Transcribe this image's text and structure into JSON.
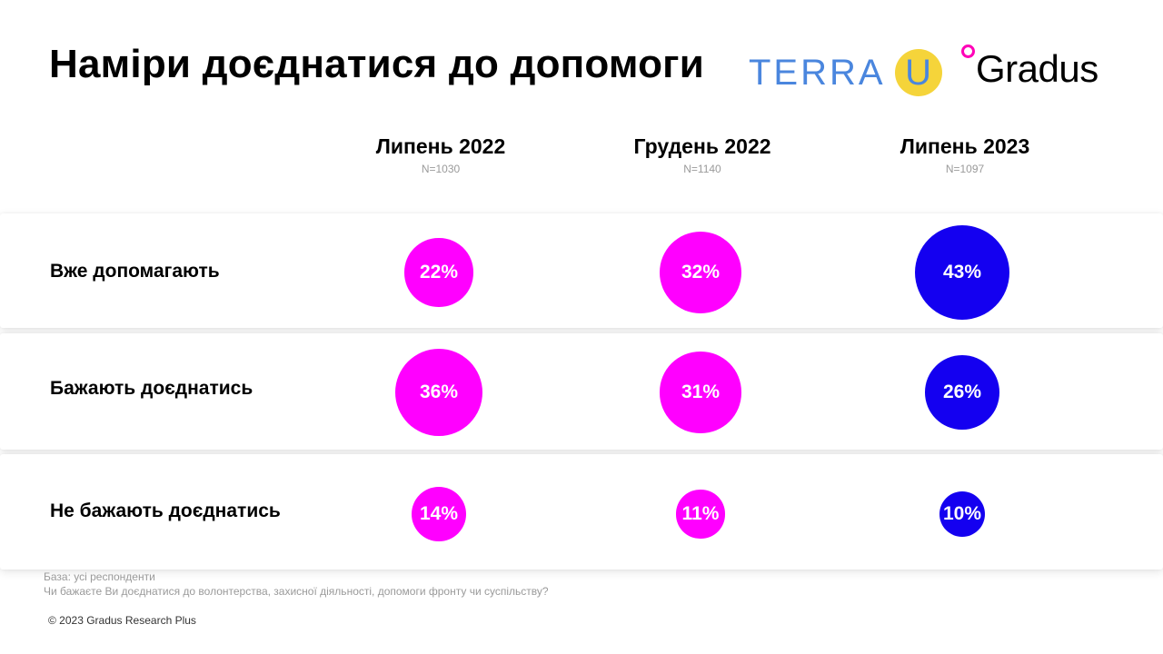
{
  "header": {
    "title": "Наміри доєднатися до допомоги",
    "logo_terra_text": "TERRA",
    "logo_terra_u": "U",
    "logo_gradus_text": "Gradus",
    "logo_gradus_accent": "#ff00b8"
  },
  "chart_data": {
    "type": "bubble-table",
    "columns": [
      {
        "name": "Липень 2022",
        "n": "N=1030"
      },
      {
        "name": "Грудень 2022",
        "n": "N=1140"
      },
      {
        "name": "Липень 2023",
        "n": "N=1097"
      }
    ],
    "rows": [
      {
        "label": "Вже допомагають",
        "values": [
          22,
          32,
          43
        ],
        "display": [
          "22%",
          "32%",
          "43%"
        ]
      },
      {
        "label": "Бажають доєднатись",
        "values": [
          36,
          31,
          26
        ],
        "display": [
          "36%",
          "31%",
          "26%"
        ]
      },
      {
        "label": "Не бажають доєднатись",
        "values": [
          14,
          11,
          10
        ],
        "display": [
          "14%",
          "11%",
          "10%"
        ]
      }
    ],
    "colors": {
      "previous": "#ff00ff",
      "current": "#1400f0"
    }
  },
  "footer": {
    "base": "База: усі респонденти",
    "question": "Чи бажаєте Ви доєднатися до волонтерства, захисної діяльності, допомоги фронту чи суспільству?",
    "copyright": "© 2023 Gradus Research Plus"
  }
}
